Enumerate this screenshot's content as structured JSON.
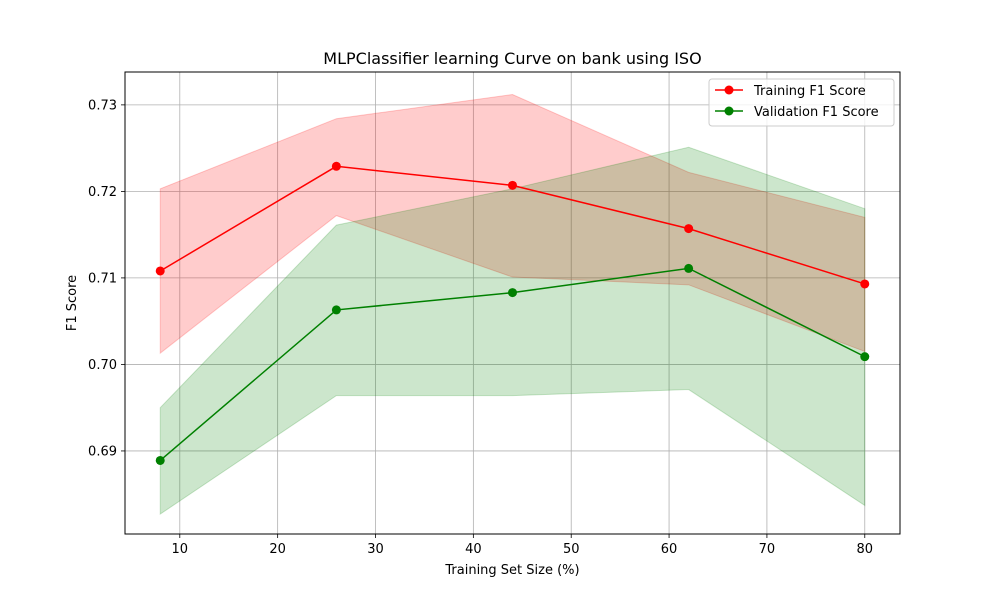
{
  "chart_data": {
    "type": "line",
    "title": "MLPClassifier learning Curve on bank using ISO",
    "xlabel": "Training Set Size (%)",
    "ylabel": "F1 Score",
    "xlim": [
      4.4,
      83.6
    ],
    "ylim": [
      0.6804,
      0.7338
    ],
    "xticks": [
      10,
      20,
      30,
      40,
      50,
      60,
      70,
      80
    ],
    "yticks": [
      0.69,
      0.7,
      0.71,
      0.72,
      0.73
    ],
    "xtick_labels": [
      "10",
      "20",
      "30",
      "40",
      "50",
      "60",
      "70",
      "80"
    ],
    "ytick_labels": [
      "0.69",
      "0.70",
      "0.71",
      "0.72",
      "0.73"
    ],
    "grid": true,
    "legend_position": "top-right",
    "x": [
      8,
      26,
      44,
      62,
      80
    ],
    "series": [
      {
        "name": "Training F1 Score",
        "color": "#ff0000",
        "band_color": "#ff0000",
        "values": [
          0.7108,
          0.7229,
          0.7207,
          0.7157,
          0.7093
        ],
        "upper": [
          0.7203,
          0.7284,
          0.7312,
          0.7222,
          0.717
        ],
        "lower": [
          0.7013,
          0.7172,
          0.7101,
          0.7092,
          0.7015
        ]
      },
      {
        "name": "Validation F1 Score",
        "color": "#008000",
        "band_color": "#008000",
        "values": [
          0.6889,
          0.7063,
          0.7083,
          0.7111,
          0.7009
        ],
        "upper": [
          0.695,
          0.7161,
          0.7203,
          0.7251,
          0.718
        ],
        "lower": [
          0.6827,
          0.6964,
          0.6964,
          0.6971,
          0.6837
        ]
      }
    ]
  }
}
